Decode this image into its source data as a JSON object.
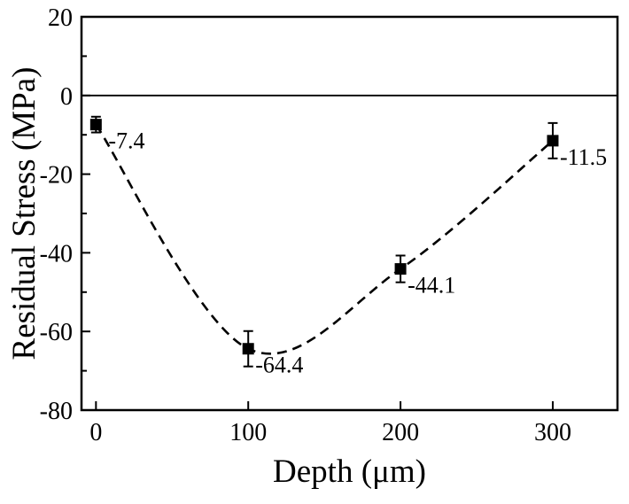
{
  "figure": {
    "background": "#ffffff",
    "ink_color": "#000000"
  },
  "chart_data": {
    "type": "scatter",
    "title": "",
    "xlabel": "Depth (μm)",
    "ylabel": "Residual Stress (MPa)",
    "xlim": [
      -9.5,
      342.5
    ],
    "ylim": [
      -80,
      20
    ],
    "x_major_ticks": [
      0,
      100,
      200,
      300
    ],
    "x_tick_labels": [
      "0",
      "100",
      "200",
      "300"
    ],
    "y_major_ticks": [
      20,
      0,
      -20,
      -40,
      -60,
      -80
    ],
    "y_tick_labels": [
      "20",
      "0",
      "-20",
      "-40",
      "-60",
      "-80"
    ],
    "y_minor_ticks": [
      10,
      -10,
      -30,
      -50,
      -70
    ],
    "grid": false,
    "legend": null,
    "zero_line": true,
    "series": [
      {
        "name": "residual-stress-vs-depth",
        "marker": "square",
        "line_style": "dashed-spline",
        "color": "#000000",
        "points": [
          {
            "x": 0,
            "y": -7.4,
            "yerr": 2.0,
            "label": "-7.4"
          },
          {
            "x": 100,
            "y": -64.4,
            "yerr": 4.5,
            "label": "-64.4"
          },
          {
            "x": 200,
            "y": -44.1,
            "yerr": 3.4,
            "label": "-44.1"
          },
          {
            "x": 300,
            "y": -11.5,
            "yerr": 4.5,
            "label": "-11.5"
          }
        ]
      }
    ]
  }
}
